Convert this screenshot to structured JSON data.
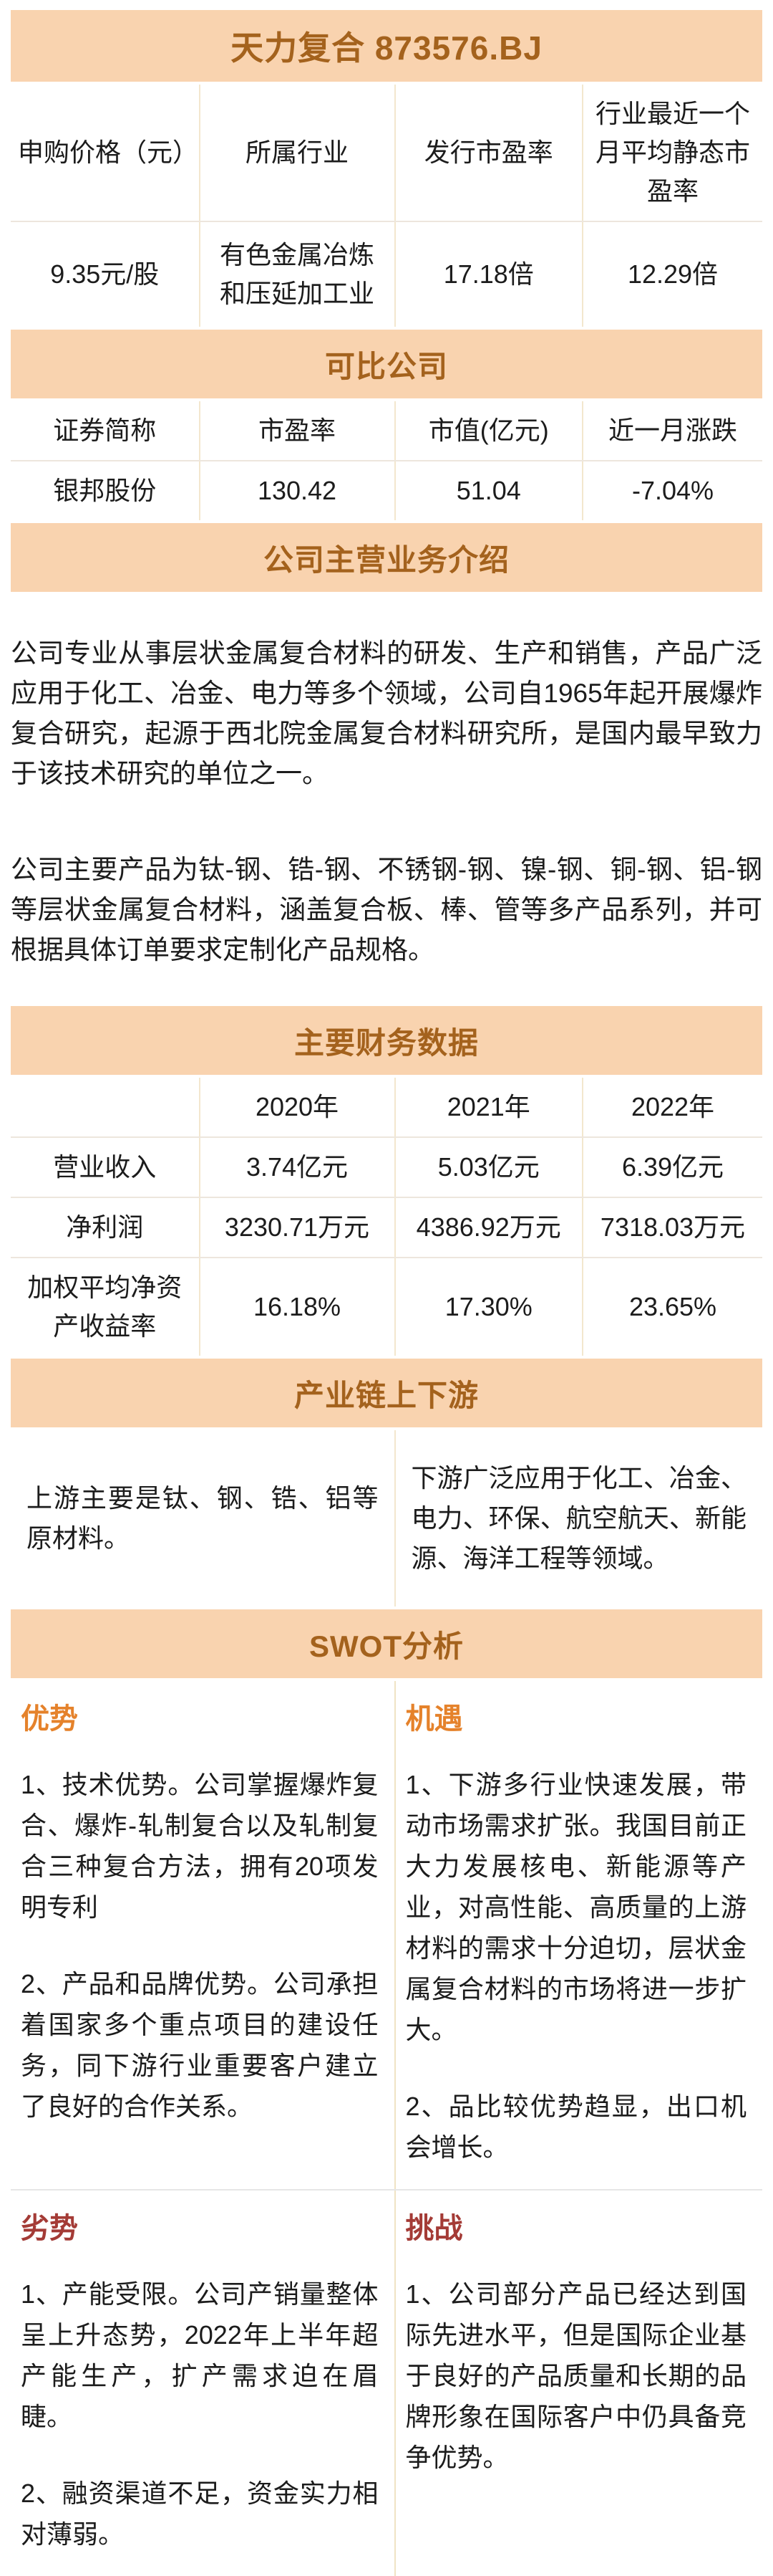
{
  "title": "天力复合 873576.BJ",
  "ipo": {
    "headers": [
      "申购价格（元）",
      "所属行业",
      "发行市盈率",
      "行业最近一个月平均静态市盈率"
    ],
    "values": [
      "9.35元/股",
      "有色金属冶炼和压延加工业",
      "17.18倍",
      "12.29倍"
    ]
  },
  "comparable": {
    "section_title": "可比公司",
    "headers": [
      "证券简称",
      "市盈率",
      "市值(亿元)",
      "近一月涨跌"
    ],
    "row": [
      "银邦股份",
      "130.42",
      "51.04",
      "-7.04%"
    ]
  },
  "business": {
    "section_title": "公司主营业务介绍",
    "paragraph1": "公司专业从事层状金属复合材料的研发、生产和销售，产品广泛应用于化工、冶金、电力等多个领域，公司自1965年起开展爆炸复合研究，起源于西北院金属复合材料研究所，是国内最早致力于该技术研究的单位之一。",
    "paragraph2": "公司主要产品为钛-钢、锆-钢、不锈钢-钢、镍-钢、铜-钢、铝-钢等层状金属复合材料，涵盖复合板、棒、管等多产品系列，并可根据具体订单要求定制化产品规格。"
  },
  "financial": {
    "section_title": "主要财务数据",
    "corner": "",
    "years": [
      "2020年",
      "2021年",
      "2022年"
    ],
    "rows": [
      {
        "label": "营业收入",
        "values": [
          "3.74亿元",
          "5.03亿元",
          "6.39亿元"
        ]
      },
      {
        "label": "净利润",
        "values": [
          "3230.71万元",
          "4386.92万元",
          "7318.03万元"
        ]
      },
      {
        "label": "加权平均净资产收益率",
        "values": [
          "16.18%",
          "17.30%",
          "23.65%"
        ]
      }
    ]
  },
  "industry_chain": {
    "section_title": "产业链上下游",
    "upstream": "上游主要是钛、钢、锆、铝等原材料。",
    "downstream": "下游广泛应用于化工、冶金、电力、环保、航空航天、新能源、海洋工程等领域。"
  },
  "swot": {
    "section_title": "SWOT分析",
    "strengths": {
      "label": "优势",
      "item1": "1、技术优势。公司掌握爆炸复合、爆炸-轧制复合以及轧制复合三种复合方法，拥有20项发明专利",
      "item2": "2、产品和品牌优势。公司承担着国家多个重点项目的建设任务，同下游行业重要客户建立了良好的合作关系。"
    },
    "opportunities": {
      "label": "机遇",
      "item1": "1、下游多行业快速发展，带动市场需求扩张。我国目前正大力发展核电、新能源等产业，对高性能、高质量的上游材料的需求十分迫切，层状金属复合材料的市场将进一步扩大。",
      "item2": "2、品比较优势趋显，出口机会增长。"
    },
    "weaknesses": {
      "label": "劣势",
      "item1": "1、产能受限。公司产销量整体呈上升态势，2022年上半年超产能生产，扩产需求迫在眉睫。",
      "item2": "2、融资渠道不足，资金实力相对薄弱。"
    },
    "challenges": {
      "label": "挑战",
      "item1": "1、公司部分产品已经达到国际先进水平，但是国际企业基于良好的产品质量和长期的品牌形象在国际客户中仍具备竞争优势。"
    }
  },
  "colors": {
    "band_bg": "#F9D3AF",
    "band_text": "#A4621D",
    "strength_opportunity_accent": "#E5822B",
    "weakness_challenge_accent": "#A43B36",
    "body_text": "#1C1C1C"
  }
}
